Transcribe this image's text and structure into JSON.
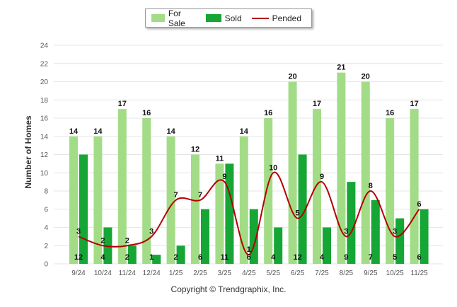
{
  "legend": {
    "for_sale": "For Sale",
    "sold": "Sold",
    "pended": "Pended"
  },
  "colors": {
    "for_sale": "#a3dc86",
    "sold": "#16a635",
    "pended": "#b30000",
    "grid": "#e6e6e6"
  },
  "chart_data": {
    "type": "bar",
    "title": "",
    "xlabel": "",
    "ylabel": "Number of Homes",
    "ylim": [
      0,
      24
    ],
    "yticks": [
      0,
      2,
      4,
      6,
      8,
      10,
      12,
      14,
      16,
      18,
      20,
      22,
      24
    ],
    "grid": true,
    "legend_position": "top-center",
    "categories": [
      "9/24",
      "10/24",
      "11/24",
      "12/24",
      "1/25",
      "2/25",
      "3/25",
      "4/25",
      "5/25",
      "6/25",
      "7/25",
      "8/25",
      "9/25",
      "10/25",
      "11/25"
    ],
    "series": [
      {
        "name": "For Sale",
        "kind": "bar",
        "values": [
          14,
          14,
          17,
          16,
          14,
          12,
          11,
          14,
          16,
          20,
          17,
          21,
          20,
          16,
          17
        ]
      },
      {
        "name": "Sold",
        "kind": "bar",
        "values": [
          12,
          4,
          2,
          1,
          2,
          6,
          11,
          6,
          4,
          12,
          4,
          9,
          7,
          5,
          6
        ]
      },
      {
        "name": "Pended",
        "kind": "line",
        "values": [
          3,
          2,
          2,
          3,
          7,
          7,
          9,
          1,
          10,
          5,
          9,
          3,
          8,
          3,
          6
        ]
      }
    ]
  },
  "footer": {
    "copyright": "Copyright © Trendgraphix, Inc."
  }
}
